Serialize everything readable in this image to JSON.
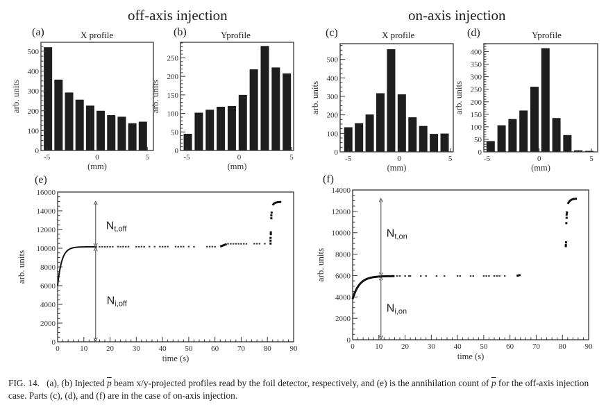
{
  "headers": {
    "off_axis": "off-axis injection",
    "on_axis": "on-axis injection"
  },
  "caption": {
    "label": "FIG. 14.",
    "part1": "(a), (b) Injected",
    "pbar": "p",
    "part2": "beam x/y-projected profiles read by the foil detector, respectively, and (e) is the annihilation count of",
    "part3": "for the off-axis injection case. Parts (c), (d), and (f) are in the case of on-axis injection."
  },
  "chart_data": [
    {
      "id": "a",
      "letter": "(a)",
      "type": "bar",
      "title": "X profile",
      "xlabel": "(mm)",
      "ylabel": "arb. units",
      "x": [
        -4.9,
        -3.85,
        -2.8,
        -1.75,
        -0.7,
        0.35,
        1.4,
        2.45,
        3.5,
        4.55
      ],
      "values": [
        520,
        357,
        292,
        256,
        226,
        200,
        178,
        170,
        137,
        145
      ],
      "xlim": [
        -5.6,
        5.6
      ],
      "ylim": [
        0,
        545
      ],
      "xticks": [
        -5,
        0,
        5
      ],
      "yticks": [
        0,
        100,
        200,
        300,
        400,
        500
      ],
      "yminor": 25
    },
    {
      "id": "b",
      "letter": "(b)",
      "type": "bar",
      "title": "Yprofile",
      "xlabel": "(mm)",
      "ylabel": "arb. units",
      "x": [
        -4.9,
        -3.85,
        -2.8,
        -1.75,
        -0.7,
        0.35,
        1.4,
        2.45,
        3.5,
        4.55
      ],
      "values": [
        45,
        102,
        110,
        118,
        120,
        150,
        219,
        282,
        224,
        208
      ],
      "xlim": [
        -5.6,
        5.2
      ],
      "ylim": [
        0,
        292
      ],
      "xticks": [
        -5,
        0,
        5
      ],
      "yticks": [
        0,
        50,
        100,
        150,
        200,
        250
      ],
      "yminor": 10
    },
    {
      "id": "c",
      "letter": "(c)",
      "type": "bar",
      "title": "X profile",
      "xlabel": "(mm)",
      "ylabel": "arb. units",
      "x": [
        -5.0,
        -3.95,
        -2.9,
        -1.85,
        -0.8,
        0.25,
        1.3,
        2.35,
        3.4,
        4.45
      ],
      "values": [
        133,
        155,
        202,
        317,
        555,
        311,
        187,
        140,
        97,
        99
      ],
      "xlim": [
        -5.8,
        5.3
      ],
      "ylim": [
        0,
        585
      ],
      "xticks": [
        -5,
        0,
        5
      ],
      "yticks": [
        0,
        100,
        200,
        300,
        400,
        500
      ],
      "yminor": 25
    },
    {
      "id": "d",
      "letter": "(d)",
      "type": "bar",
      "title": "Yprofile",
      "xlabel": "(mm)",
      "ylabel": "arb. units",
      "x": [
        -4.65,
        -3.6,
        -2.55,
        -1.5,
        -0.45,
        0.6,
        1.65,
        2.7,
        3.75,
        4.8
      ],
      "values": [
        43,
        106,
        131,
        165,
        260,
        414,
        135,
        67,
        6,
        4
      ],
      "xlim": [
        -5.3,
        5.6
      ],
      "ylim": [
        0,
        432
      ],
      "xticks": [
        -5,
        0,
        5
      ],
      "yticks": [
        0,
        50,
        100,
        150,
        200,
        250,
        300,
        350,
        400
      ],
      "yminor": 10
    },
    {
      "id": "e",
      "letter": "(e)",
      "type": "scatter",
      "xlabel": "time (s)",
      "ylabel": "arb. units",
      "xlim": [
        0,
        90
      ],
      "ylim": [
        0,
        16000
      ],
      "xticks": [
        0,
        10,
        20,
        30,
        40,
        50,
        60,
        70,
        80,
        90
      ],
      "yticks": [
        0,
        2000,
        4000,
        6000,
        8000,
        10000,
        12000,
        14000,
        16000
      ],
      "xminor": 2,
      "yminor": 500,
      "curve": {
        "t0": 0,
        "y0": 6000,
        "plateau": 10150,
        "tau": 1.6,
        "t_end": 15
      },
      "sparse_points": [
        [
          16,
          10150
        ],
        [
          17,
          10160
        ],
        [
          18,
          10150
        ],
        [
          19,
          10160
        ],
        [
          20,
          10150
        ],
        [
          21,
          10160
        ],
        [
          23,
          10170
        ],
        [
          24,
          10160
        ],
        [
          25,
          10170
        ],
        [
          26,
          10160
        ],
        [
          27,
          10170
        ],
        [
          30,
          10160
        ],
        [
          31,
          10160
        ],
        [
          32,
          10170
        ],
        [
          33,
          10160
        ],
        [
          35,
          10170
        ],
        [
          37,
          10170
        ],
        [
          39,
          10170
        ],
        [
          40,
          10160
        ],
        [
          41,
          10170
        ],
        [
          42,
          10170
        ],
        [
          45,
          10170
        ],
        [
          46,
          10160
        ],
        [
          47,
          10170
        ],
        [
          48,
          10170
        ],
        [
          50,
          10170
        ],
        [
          52,
          10160
        ],
        [
          57,
          10170
        ],
        [
          58,
          10170
        ],
        [
          59,
          10170
        ],
        [
          60,
          10160
        ]
      ],
      "step1": {
        "from": [
          62,
          10180
        ],
        "to": [
          64.5,
          10450
        ]
      },
      "step1_points": [
        [
          65,
          10470
        ],
        [
          66,
          10470
        ],
        [
          67,
          10470
        ],
        [
          68,
          10470
        ],
        [
          69,
          10470
        ],
        [
          70,
          10470
        ],
        [
          71,
          10470
        ],
        [
          72,
          10470
        ],
        [
          75,
          10480
        ],
        [
          76,
          10480
        ],
        [
          77,
          10480
        ],
        [
          79,
          10480
        ]
      ],
      "jump_points": [
        [
          81.2,
          10500
        ],
        [
          81.2,
          10800
        ],
        [
          81.2,
          11100
        ],
        [
          81.3,
          11500
        ],
        [
          81.3,
          11700
        ],
        [
          81.5,
          13200
        ],
        [
          81.5,
          13500
        ],
        [
          81.6,
          13800
        ]
      ],
      "step2": {
        "t0": 82,
        "y0": 14600,
        "plateau": 14950,
        "tau": 0.8,
        "t_end": 85.3
      },
      "annotations": {
        "top_label": "N",
        "top_sub": "t,off",
        "bottom_label": "N",
        "bottom_sub": "i,off",
        "arrow_x": 14.5,
        "arrow_top": 15000,
        "arrow_mid": 10150,
        "arrow_bottom": 0
      }
    },
    {
      "id": "f",
      "letter": "(f)",
      "type": "scatter",
      "xlabel": "time (s)",
      "ylabel": "arb. units",
      "xlim": [
        0,
        90
      ],
      "ylim": [
        0,
        14000
      ],
      "xticks": [
        0,
        10,
        20,
        30,
        40,
        50,
        60,
        70,
        80,
        90
      ],
      "yticks": [
        0,
        2000,
        4000,
        6000,
        8000,
        10000,
        12000,
        14000
      ],
      "xminor": 2,
      "yminor": 500,
      "curve": {
        "t0": 0,
        "y0": 3800,
        "plateau": 5950,
        "tau": 2.6,
        "t_end": 16
      },
      "sparse_points": [
        [
          17,
          5960
        ],
        [
          18,
          5960
        ],
        [
          20,
          5960
        ],
        [
          21.5,
          5960
        ],
        [
          22,
          5960
        ],
        [
          26,
          5960
        ],
        [
          28,
          5960
        ],
        [
          32,
          5960
        ],
        [
          35,
          5960
        ],
        [
          40,
          5960
        ],
        [
          41,
          5960
        ],
        [
          45,
          5960
        ],
        [
          46,
          5960
        ],
        [
          50,
          5960
        ],
        [
          51,
          5960
        ],
        [
          52,
          5960
        ],
        [
          54,
          5960
        ],
        [
          55,
          5960
        ],
        [
          56,
          5960
        ],
        [
          58,
          5960
        ]
      ],
      "step1": {
        "from": [
          62.5,
          5980
        ],
        "to": [
          64,
          6050
        ]
      },
      "step1_points": [],
      "jump_points": [
        [
          81.3,
          8750
        ],
        [
          81.3,
          8850
        ],
        [
          81.4,
          9100
        ],
        [
          81.5,
          10900
        ],
        [
          81.6,
          11400
        ],
        [
          81.6,
          11700
        ],
        [
          81.7,
          11900
        ]
      ],
      "step2": {
        "t0": 82.1,
        "y0": 12700,
        "plateau": 13200,
        "tau": 0.9,
        "t_end": 85.5
      },
      "annotations": {
        "top_label": "N",
        "top_sub": "t,on",
        "bottom_label": "N",
        "bottom_sub": "i,on",
        "arrow_x": 10.8,
        "arrow_top": 13200,
        "arrow_mid": 5950,
        "arrow_bottom": 0
      }
    }
  ]
}
